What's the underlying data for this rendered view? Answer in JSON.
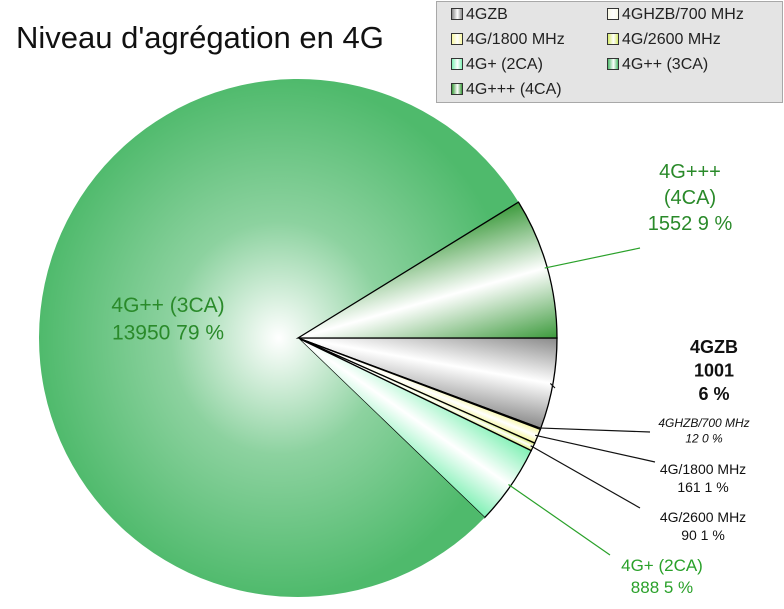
{
  "chart_data": {
    "type": "pie",
    "title": "Niveau d'agrégation en 4G",
    "legend_position": "top-right",
    "slices": [
      {
        "name": "4GZB",
        "value": 1001,
        "percent": "6 %",
        "color": "#8a8a8a"
      },
      {
        "name": "4GHZB/700 MHz",
        "value": 12,
        "percent": "0 %",
        "color": "#fafae6"
      },
      {
        "name": "4G/1800 MHz",
        "value": 161,
        "percent": "1 %",
        "color": "#f7f7a0"
      },
      {
        "name": "4G/2600 MHz",
        "value": 90,
        "percent": "1 %",
        "color": "#d8ec6c"
      },
      {
        "name": "4G+ (2CA)",
        "value": 888,
        "percent": "5 %",
        "color": "#7ff0b4"
      },
      {
        "name": "4G++ (3CA)",
        "value": 13950,
        "percent": "79 %",
        "color": "#4fba6c"
      },
      {
        "name": "4G+++ (4CA)",
        "value": 1552,
        "percent": "9 %",
        "color": "#3c9a3c"
      }
    ]
  }
}
